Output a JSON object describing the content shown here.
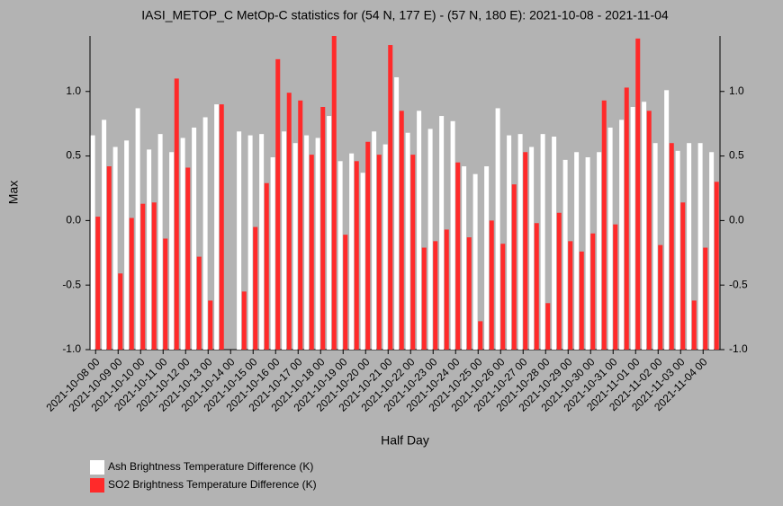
{
  "chart_data": {
    "type": "bar",
    "title": "IASI_METOP_C MetOp-C statistics for (54 N, 177 E) - (57 N, 180 E): 2021-10-08 - 2021-11-04",
    "xlabel": "Half Day",
    "ylabel": "Max",
    "categories": [
      "2021-10-08 00",
      null,
      "2021-10-09 00",
      null,
      "2021-10-10 00",
      null,
      "2021-10-11 00",
      null,
      "2021-10-12 00",
      null,
      "2021-10-13 00",
      null,
      "2021-10-14 00",
      null,
      "2021-10-15 00",
      null,
      "2021-10-16 00",
      null,
      "2021-10-17 00",
      null,
      "2021-10-18 00",
      null,
      "2021-10-19 00",
      null,
      "2021-10-20 00",
      null,
      "2021-10-21 00",
      null,
      "2021-10-22 00",
      null,
      "2021-10-23 00",
      null,
      "2021-10-24 00",
      null,
      "2021-10-25 00",
      null,
      "2021-10-26 00",
      null,
      "2021-10-27 00",
      null,
      "2021-10-28 00",
      null,
      "2021-10-29 00",
      null,
      "2021-10-30 00",
      null,
      "2021-10-31 00",
      null,
      "2021-11-01 00",
      null,
      "2021-11-02 00",
      null,
      "2021-11-03 00",
      null,
      "2021-11-04 00",
      null
    ],
    "series": [
      {
        "name": "Ash Brightness Temperature Difference (K)",
        "color": "#ffffff",
        "values": [
          0.66,
          0.78,
          0.57,
          0.62,
          0.87,
          0.55,
          0.67,
          0.53,
          0.64,
          0.72,
          0.8,
          0.9,
          null,
          0.69,
          0.66,
          0.67,
          0.49,
          0.69,
          0.6,
          0.66,
          0.64,
          0.81,
          0.46,
          0.52,
          0.37,
          0.69,
          0.59,
          1.11,
          0.68,
          0.85,
          0.71,
          0.81,
          0.77,
          0.42,
          0.36,
          0.42,
          0.87,
          0.66,
          0.67,
          0.57,
          0.67,
          0.65,
          0.47,
          0.53,
          0.49,
          0.53,
          0.72,
          0.78,
          0.88,
          0.92,
          0.6,
          1.01,
          0.54,
          0.6,
          0.6,
          0.53
        ]
      },
      {
        "name": "SO2 Brightness Temperature Difference (K)",
        "color": "#ff2a2a",
        "values": [
          0.03,
          0.42,
          -0.41,
          0.02,
          0.13,
          0.14,
          -0.14,
          1.1,
          0.41,
          -0.28,
          -0.62,
          0.9,
          null,
          -0.55,
          -0.05,
          0.29,
          1.25,
          0.99,
          0.93,
          0.51,
          0.88,
          1.43,
          -0.11,
          0.46,
          0.61,
          0.51,
          1.36,
          0.85,
          0.51,
          -0.21,
          -0.16,
          -0.07,
          0.45,
          -0.13,
          -0.78,
          0.0,
          -0.18,
          0.28,
          0.53,
          -0.02,
          -0.64,
          0.06,
          -0.16,
          -0.24,
          -0.1,
          0.93,
          -0.03,
          1.03,
          1.41,
          0.85,
          -0.19,
          0.6,
          0.14,
          -0.62,
          -0.21,
          0.3
        ]
      }
    ],
    "ylim": [
      -1.0,
      1.43
    ],
    "yticks": [
      {
        "value": -1.0,
        "label": "-1.0"
      },
      {
        "value": -0.5,
        "label": "-0.5"
      },
      {
        "value": 0.0,
        "label": "0.0"
      },
      {
        "value": 0.5,
        "label": "0.5"
      },
      {
        "value": 1.0,
        "label": "1.0"
      }
    ],
    "grid": false
  }
}
